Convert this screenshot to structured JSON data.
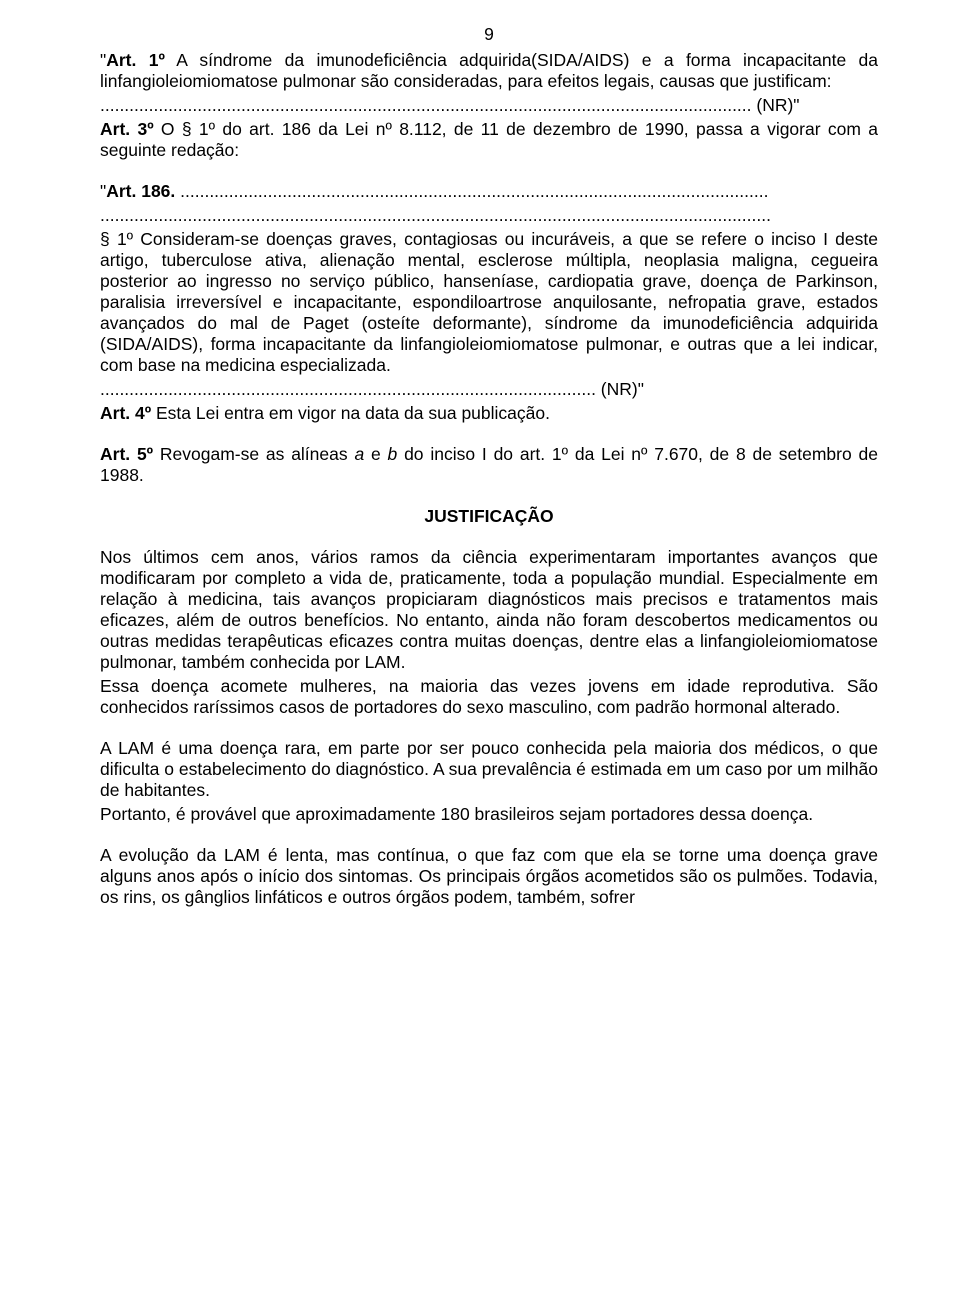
{
  "pageNumber": "9",
  "p1_prefix": "\"",
  "p1_art": "Art. 1º",
  "p1_text": " A síndrome da imunodeficiência adquirida(SIDA/AIDS) e a forma incapacitante da linfangioleiomiomatose pulmonar são consideradas, para efeitos legais, causas que justificam:",
  "dots1": "...................................................................................................................................... (NR)\"",
  "p2_art": "Art. 3º",
  "p2_text": " O § 1º do art. 186 da Lei nº 8.112, de 11 de dezembro de 1990, passa a vigorar com a seguinte redação:",
  "p3_prefix": "\"",
  "p3_art": "Art. 186.",
  "p3_text": " .........................................................................................................................",
  "dots2": "..........................................................................................................................................",
  "p4": "§ 1º Consideram-se doenças graves, contagiosas ou incuráveis, a que se refere o inciso I deste artigo, tuberculose ativa, alienação mental, esclerose múltipla, neoplasia maligna, cegueira posterior ao ingresso no serviço público, hanseníase, cardiopatia grave, doença de Parkinson, paralisia irreversível e incapacitante, espondiloartrose anquilosante, nefropatia grave, estados avançados do mal de Paget (osteíte deformante), síndrome da imunodeficiência adquirida (SIDA/AIDS), forma incapacitante da linfangioleiomiomatose pulmonar, e outras que a lei indicar, com base na medicina especializada.",
  "dots3": "...................................................................................................... (NR)\"",
  "p5_art": "Art. 4º",
  "p5_text": " Esta Lei entra em vigor na data da sua publicação.",
  "p6_art": "Art. 5º",
  "p6_text_a": " Revogam-se as alíneas ",
  "p6_a": "a",
  "p6_text_b": " e ",
  "p6_b": "b",
  "p6_text_c": " do inciso I do art. 1º da Lei nº 7.670, de 8 de setembro de 1988.",
  "heading": "JUSTIFICAÇÃO",
  "p7": "Nos últimos cem anos, vários ramos da ciência experimentaram importantes avanços que modificaram por completo a vida de, praticamente, toda a população mundial. Especialmente em relação à medicina, tais avanços propiciaram diagnósticos mais precisos e tratamentos mais eficazes, além de outros benefícios. No entanto, ainda não foram descobertos medicamentos ou outras medidas terapêuticas eficazes contra muitas doenças, dentre elas a linfangioleiomiomatose pulmonar, também conhecida por LAM.",
  "p8": "Essa doença acomete mulheres, na maioria das vezes jovens em idade reprodutiva. São conhecidos raríssimos casos de portadores do sexo masculino, com padrão hormonal alterado.",
  "p9": "A LAM é uma doença rara, em parte por ser pouco conhecida pela maioria dos médicos, o que dificulta o estabelecimento do diagnóstico. A sua prevalência é estimada em um caso por um milhão de habitantes.",
  "p10": "Portanto, é provável que aproximadamente 180 brasileiros sejam portadores dessa doença.",
  "p11": "A evolução da LAM é lenta, mas contínua, o que faz com que ela se torne uma doença grave alguns anos após o início dos sintomas. Os principais órgãos acometidos são os pulmões. Todavia, os rins, os gânglios linfáticos e outros órgãos podem, também, sofrer"
}
